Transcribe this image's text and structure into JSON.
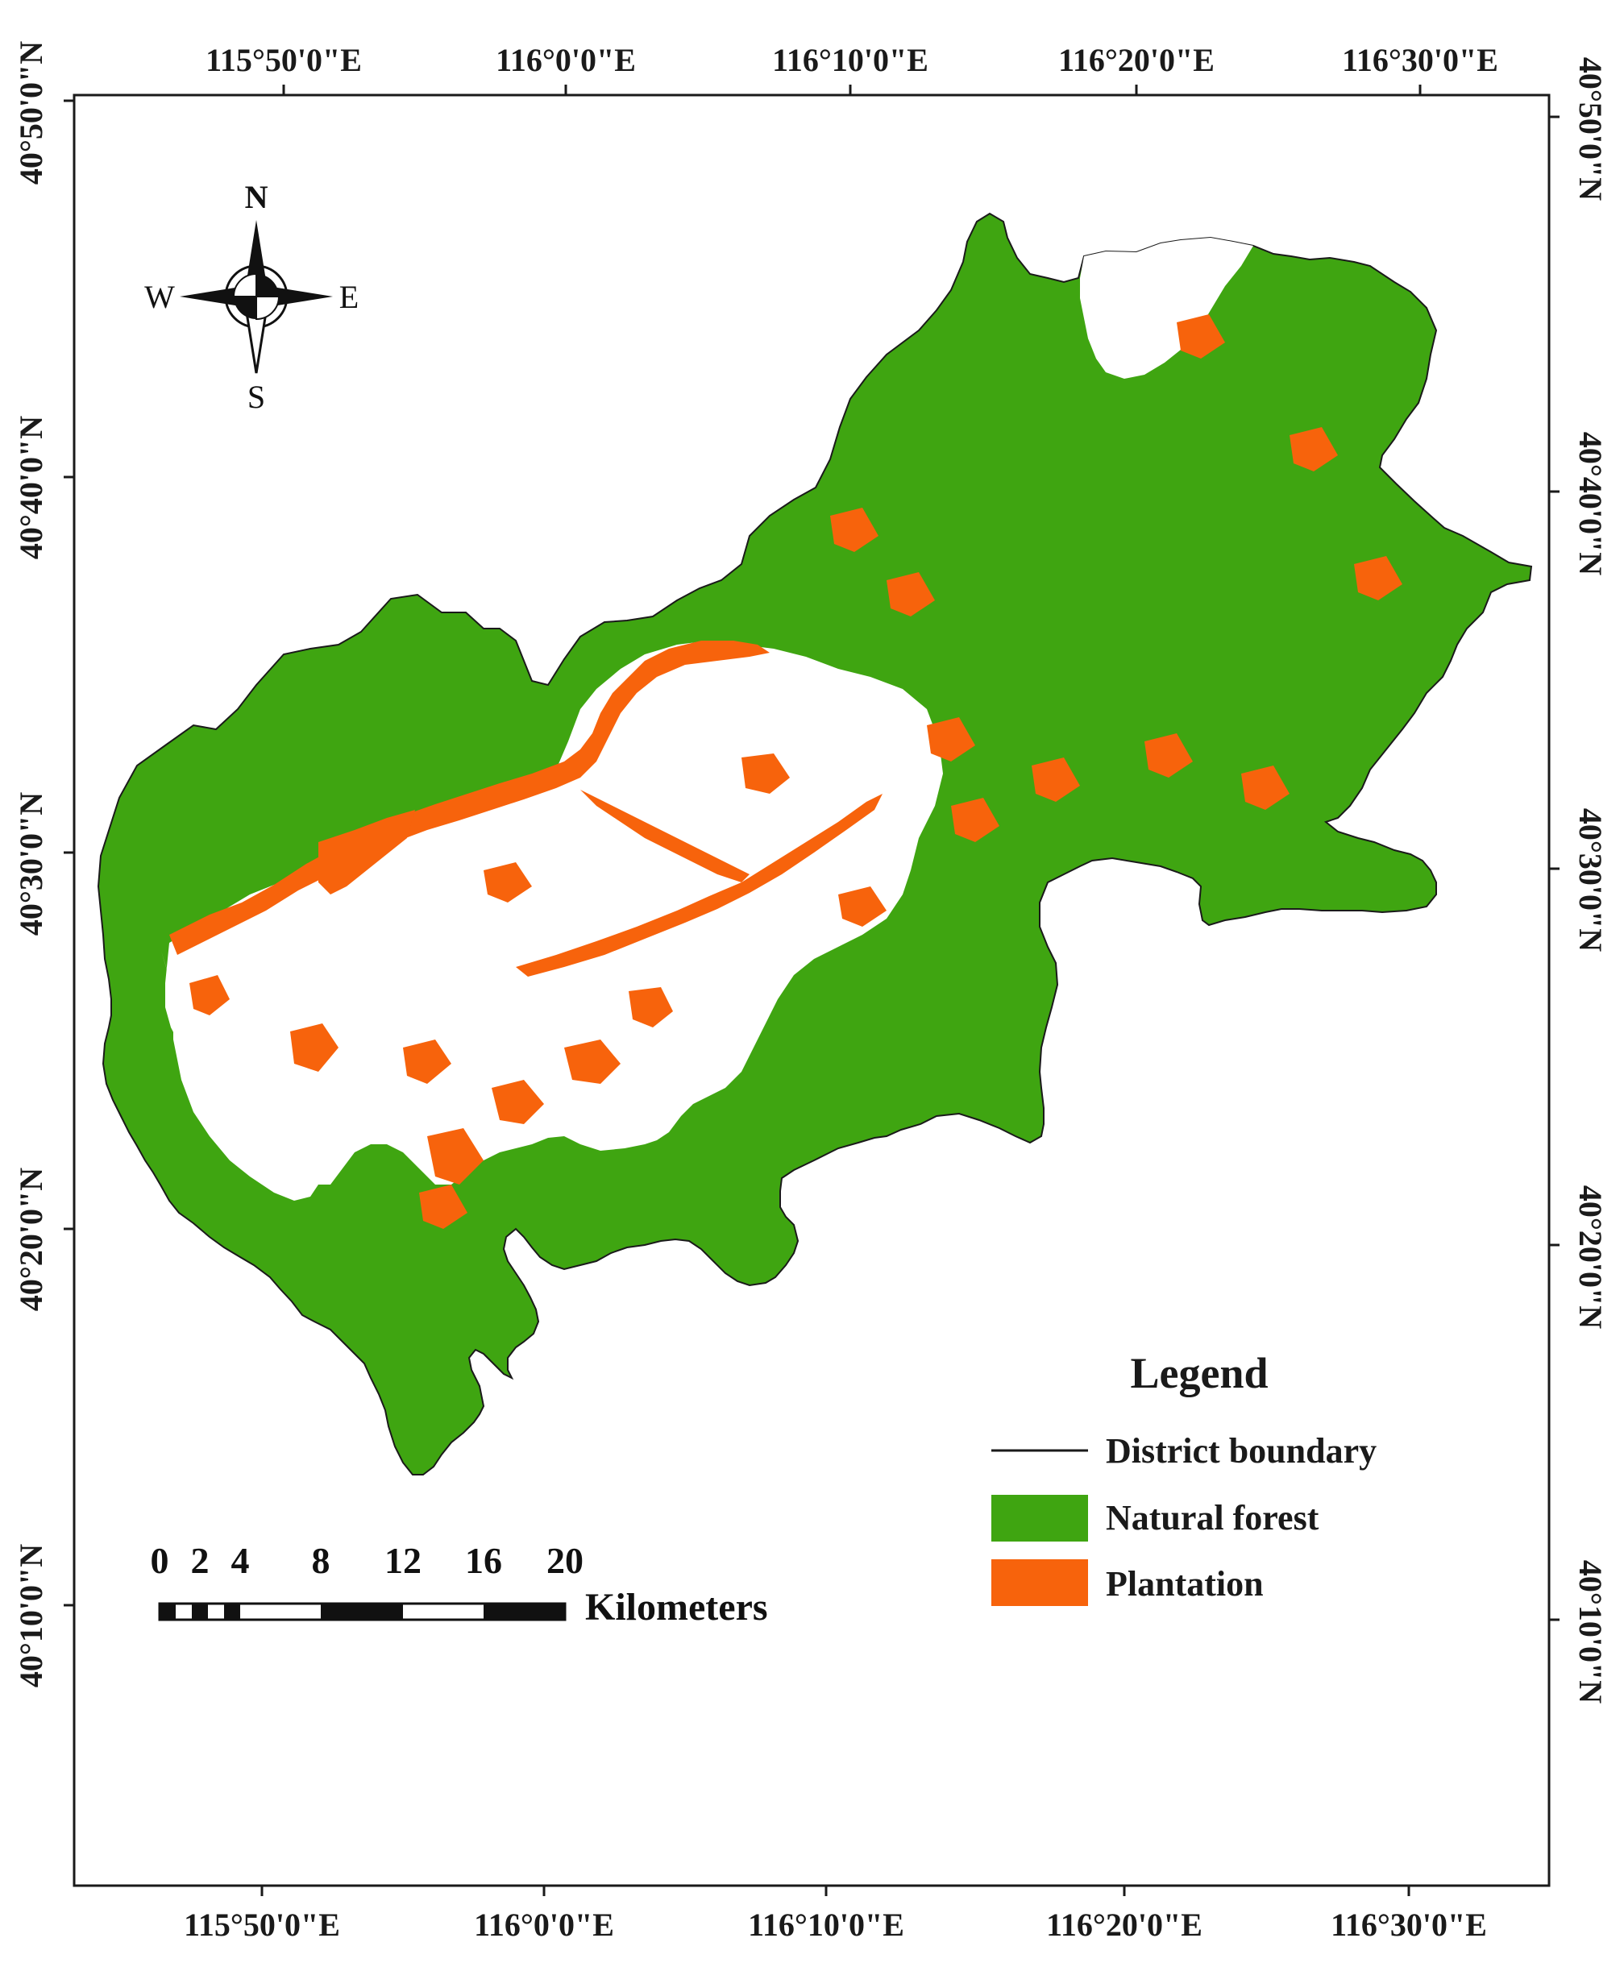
{
  "map": {
    "top_axis_labels": [
      "115°50'0\"E",
      "116°0'0\"E",
      "116°10'0\"E",
      "116°20'0\"E",
      "116°30'0\"E"
    ],
    "bottom_axis_labels": [
      "115°50'0\"E",
      "116°0'0\"E",
      "116°10'0\"E",
      "116°20'0\"E",
      "116°30'0\"E"
    ],
    "left_axis_labels": [
      "40°50'0\"N",
      "40°40'0\"N",
      "40°30'0\"N",
      "40°20'0\"N",
      "40°10'0\"N"
    ],
    "right_axis_labels": [
      "40°50'0\"N",
      "40°40'0\"N",
      "40°30'0\"N",
      "40°20'0\"N",
      "40°10'0\"N"
    ]
  },
  "compass": {
    "north": "N",
    "south": "S",
    "east": "E",
    "west": "W"
  },
  "scale_bar": {
    "ticks": [
      "0",
      "2",
      "4",
      "8",
      "12",
      "16",
      "20"
    ],
    "unit": "Kilometers"
  },
  "legend": {
    "title": "Legend",
    "items": [
      {
        "label": "District boundary",
        "symbol": "line",
        "color": "#1a1a1a"
      },
      {
        "label": "Natural forest",
        "symbol": "patch",
        "color": "#3fa511"
      },
      {
        "label": "Plantation",
        "symbol": "patch",
        "color": "#f7630c"
      }
    ]
  },
  "colors": {
    "natural_forest": "#3fa511",
    "plantation": "#f7630c",
    "boundary": "#1a1a1a"
  }
}
